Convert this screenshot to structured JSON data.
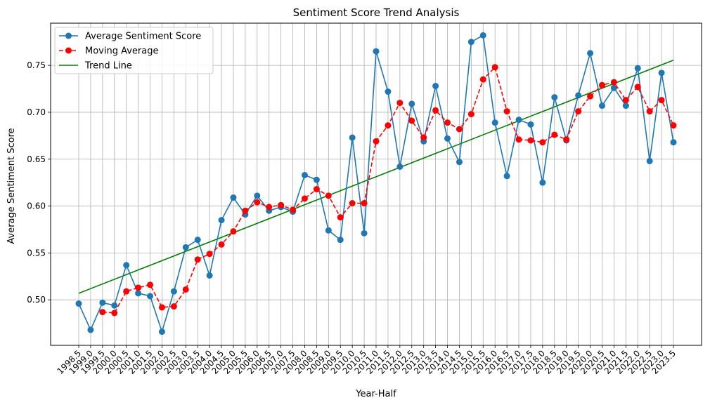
{
  "chart_data": {
    "type": "line",
    "title": "Sentiment Score Trend Analysis",
    "xlabel": "Year-Half",
    "ylabel": "Average Sentiment Score",
    "x": [
      "1998.5",
      "1999.0",
      "1999.5",
      "2000.0",
      "2000.5",
      "2001.0",
      "2001.5",
      "2002.0",
      "2002.5",
      "2003.0",
      "2003.5",
      "2004.0",
      "2004.5",
      "2005.0",
      "2005.5",
      "2006.0",
      "2006.5",
      "2007.0",
      "2007.5",
      "2008.0",
      "2008.5",
      "2009.0",
      "2009.5",
      "2010.0",
      "2010.5",
      "2011.0",
      "2011.5",
      "2012.0",
      "2012.5",
      "2013.0",
      "2013.5",
      "2014.0",
      "2014.5",
      "2015.0",
      "2015.5",
      "2016.0",
      "2016.5",
      "2017.0",
      "2017.5",
      "2018.0",
      "2018.5",
      "2019.0",
      "2019.5",
      "2020.0",
      "2020.5",
      "2021.0",
      "2021.5",
      "2022.0",
      "2022.5",
      "2023.0",
      "2023.5"
    ],
    "ylim": [
      0.4515,
      0.795
    ],
    "yticks": [
      "0.50",
      "0.55",
      "0.60",
      "0.65",
      "0.70",
      "0.75"
    ],
    "grid": true,
    "legend_position": "upper-left",
    "series": [
      {
        "name": "Average Sentiment Score",
        "style": "solid-line-circle-markers",
        "color": "#1f77b4",
        "values": [
          0.496,
          0.468,
          0.497,
          0.494,
          0.537,
          0.507,
          0.504,
          0.466,
          0.509,
          0.556,
          0.564,
          0.526,
          0.585,
          0.609,
          0.591,
          0.611,
          0.595,
          0.599,
          0.594,
          0.633,
          0.628,
          0.574,
          0.564,
          0.673,
          0.571,
          0.765,
          0.722,
          0.642,
          0.709,
          0.669,
          0.728,
          0.672,
          0.647,
          0.775,
          0.782,
          0.689,
          0.632,
          0.692,
          0.687,
          0.625,
          0.716,
          0.67,
          0.718,
          0.763,
          0.707,
          0.726,
          0.707,
          0.747,
          0.648,
          0.742,
          0.668
        ]
      },
      {
        "name": "Moving Average",
        "style": "dashed-line-circle-markers",
        "color": "#ff0000",
        "values": [
          null,
          null,
          0.487,
          0.486,
          0.509,
          0.513,
          0.516,
          0.492,
          0.493,
          0.511,
          0.543,
          0.549,
          0.559,
          0.573,
          0.595,
          0.604,
          0.599,
          0.601,
          0.596,
          0.608,
          0.618,
          0.611,
          0.588,
          0.603,
          0.603,
          0.669,
          0.686,
          0.71,
          0.691,
          0.673,
          0.702,
          0.689,
          0.682,
          0.698,
          0.735,
          0.748,
          0.701,
          0.671,
          0.67,
          0.668,
          0.676,
          0.671,
          0.701,
          0.717,
          0.729,
          0.732,
          0.713,
          0.727,
          0.701,
          0.713,
          0.686
        ]
      },
      {
        "name": "Trend Line",
        "style": "solid-line",
        "color": "#008000",
        "start": 0.507,
        "end": 0.7555
      }
    ]
  }
}
